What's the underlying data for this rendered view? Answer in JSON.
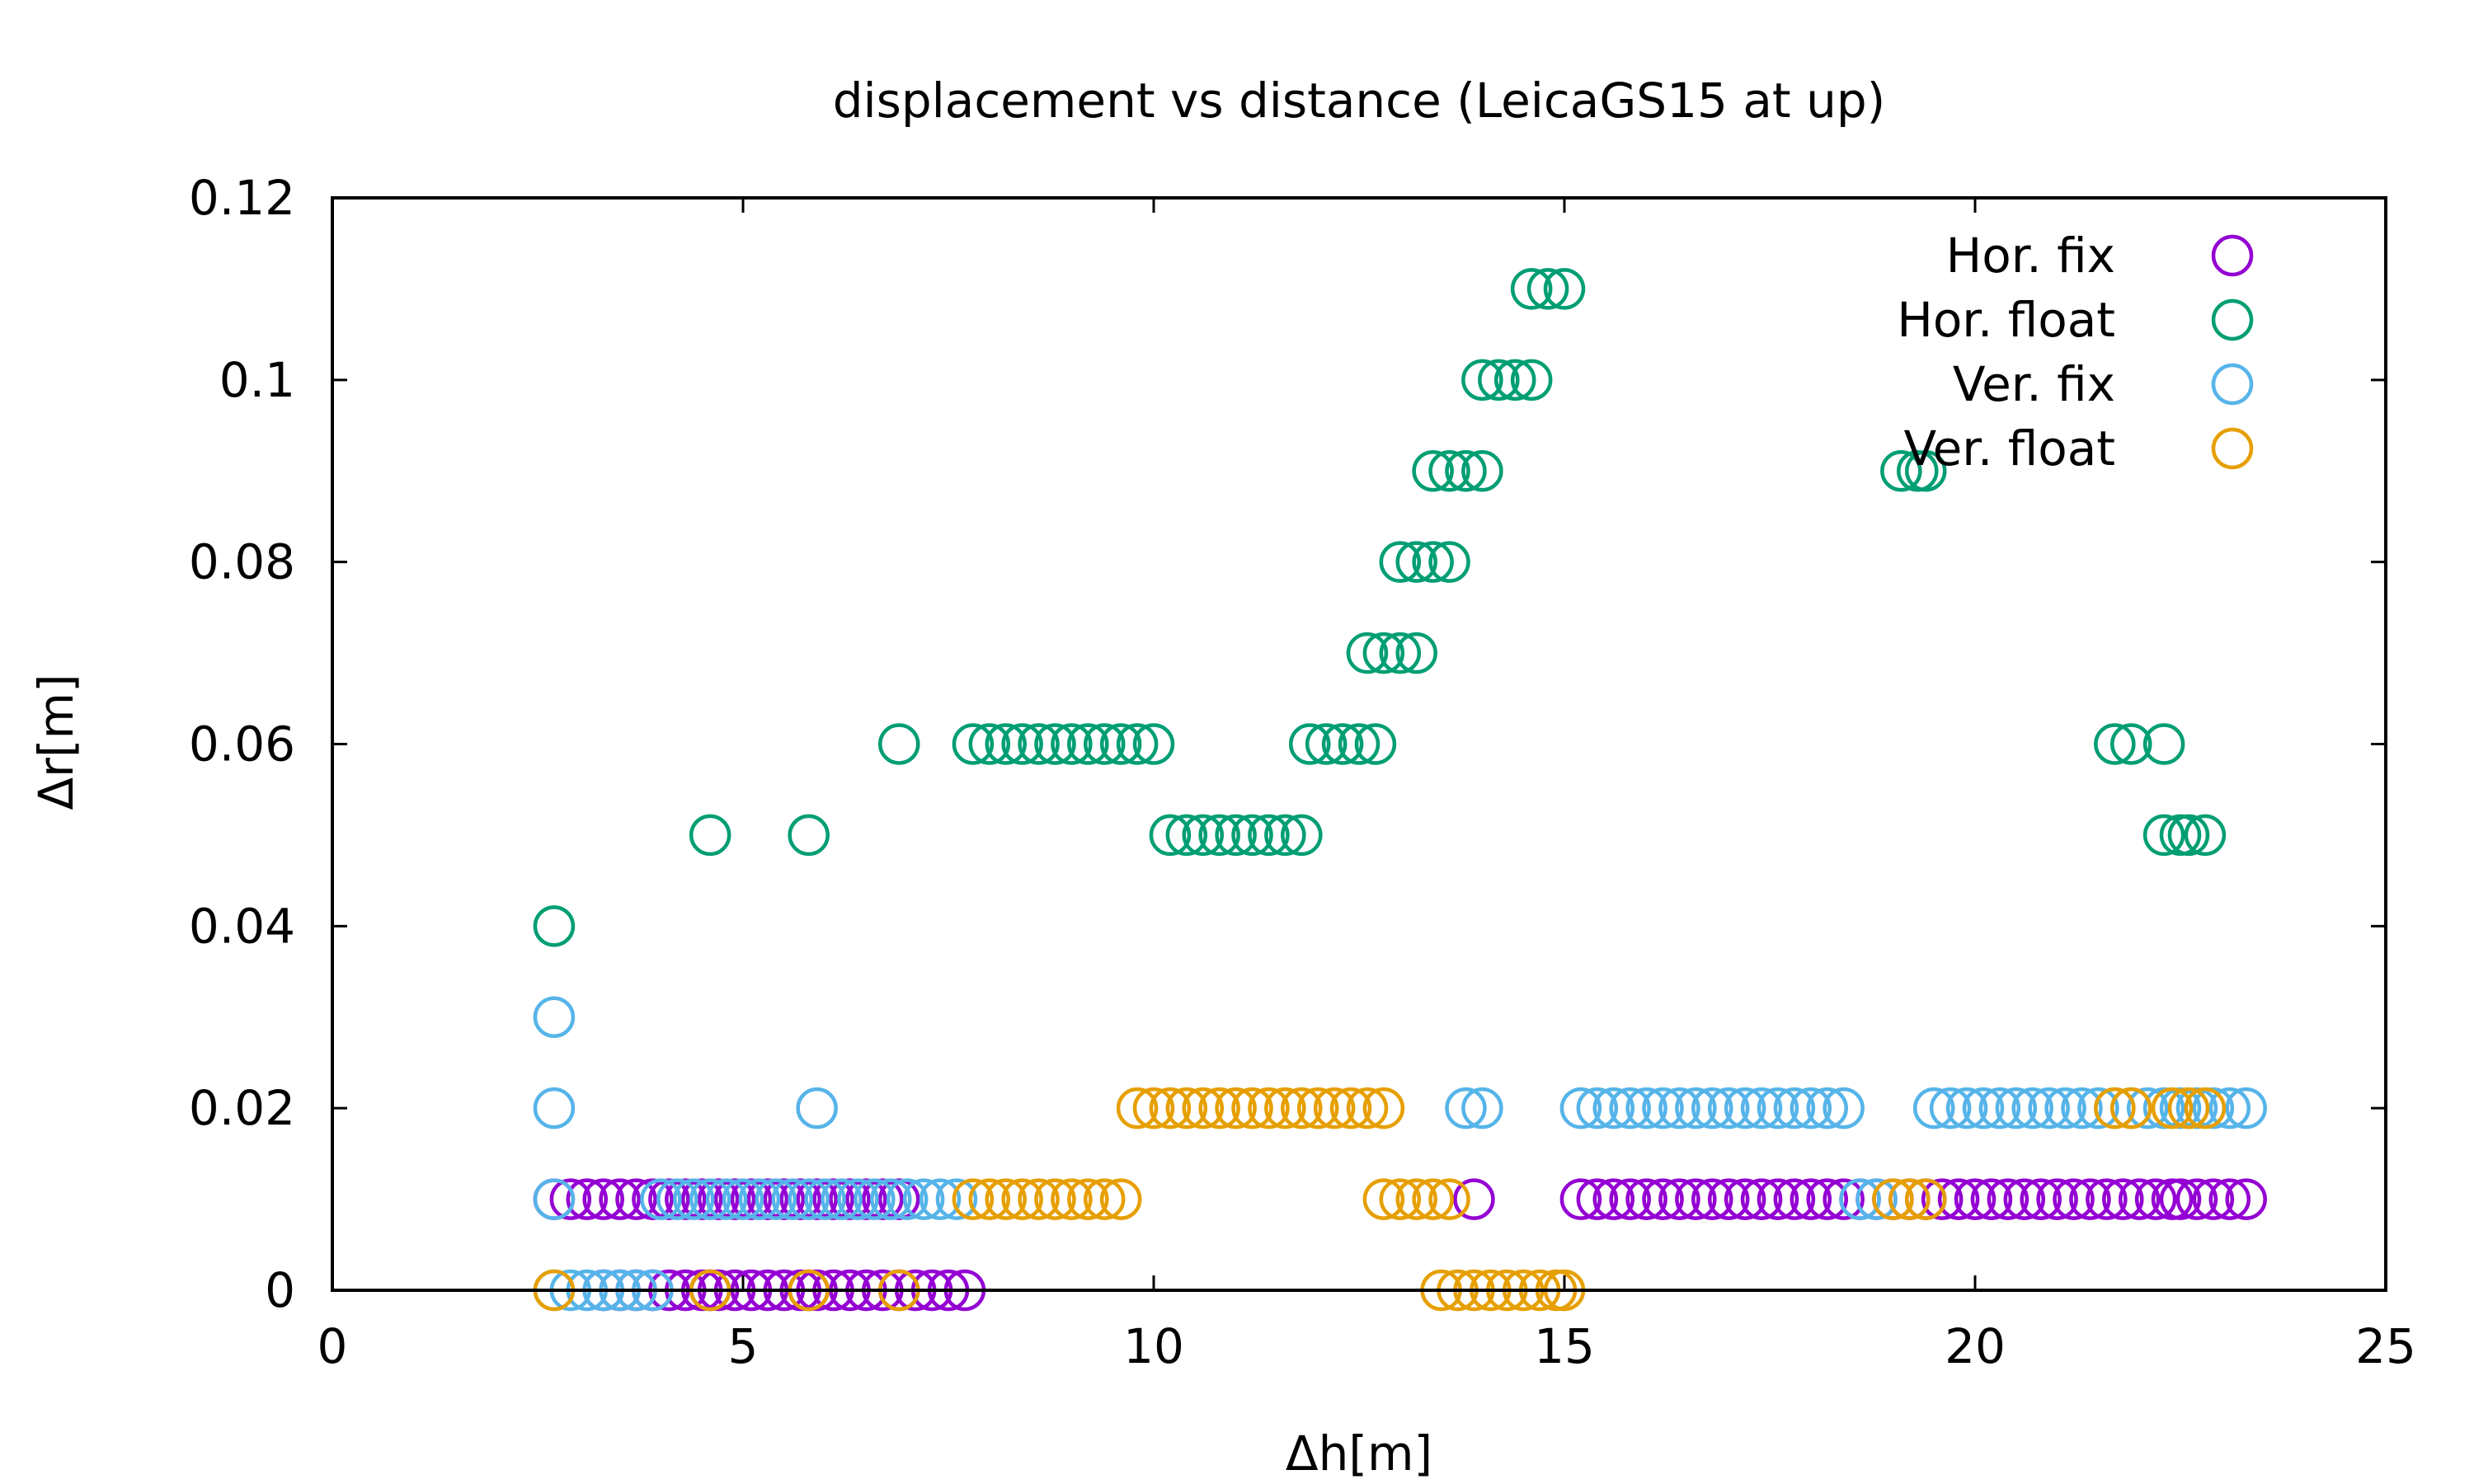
{
  "chart_data": {
    "type": "scatter",
    "title": "displacement vs distance (LeicaGS15 at up)",
    "xlabel": "Δh[m]",
    "ylabel": "Δr[m]",
    "xlim": [
      0,
      25
    ],
    "ylim": [
      0,
      0.12
    ],
    "xticks": [
      0,
      5,
      10,
      15,
      20,
      25
    ],
    "yticks": [
      0,
      0.02,
      0.04,
      0.06,
      0.08,
      0.1,
      0.12
    ],
    "ytick_labels": [
      "0",
      "0.02",
      "0.04",
      "0.06",
      "0.08",
      "0.1",
      "0.12"
    ],
    "marker": "open-circle",
    "grid": false,
    "legend_position": "top-right",
    "series": [
      {
        "name": "Hor. fix",
        "color": "#9400d3",
        "points": [
          [
            2.7,
            0.01
          ],
          [
            2.9,
            0.01
          ],
          [
            3.1,
            0.01
          ],
          [
            3.3,
            0.01
          ],
          [
            3.5,
            0.01
          ],
          [
            3.7,
            0.01
          ],
          [
            3.9,
            0.01
          ],
          [
            4.1,
            0.01
          ],
          [
            4.3,
            0.01
          ],
          [
            4.5,
            0.01
          ],
          [
            4.7,
            0.01
          ],
          [
            4.9,
            0.01
          ],
          [
            5.1,
            0.01
          ],
          [
            5.3,
            0.01
          ],
          [
            5.5,
            0.01
          ],
          [
            5.7,
            0.01
          ],
          [
            5.9,
            0.01
          ],
          [
            6.1,
            0.01
          ],
          [
            6.3,
            0.01
          ],
          [
            6.5,
            0.01
          ],
          [
            6.7,
            0.01
          ],
          [
            6.9,
            0.01
          ],
          [
            3.3,
            0
          ],
          [
            3.5,
            0
          ],
          [
            3.7,
            0
          ],
          [
            3.9,
            0
          ],
          [
            4.1,
            0
          ],
          [
            4.3,
            0
          ],
          [
            4.5,
            0
          ],
          [
            4.6,
            0
          ],
          [
            4.7,
            0
          ],
          [
            4.9,
            0
          ],
          [
            5.1,
            0
          ],
          [
            5.3,
            0
          ],
          [
            5.5,
            0
          ],
          [
            5.7,
            0
          ],
          [
            5.8,
            0
          ],
          [
            5.9,
            0
          ],
          [
            6.1,
            0
          ],
          [
            6.3,
            0
          ],
          [
            6.5,
            0
          ],
          [
            6.7,
            0
          ],
          [
            6.9,
            0
          ],
          [
            7.1,
            0
          ],
          [
            7.3,
            0
          ],
          [
            7.5,
            0
          ],
          [
            7.7,
            0
          ],
          [
            13.9,
            0.01
          ],
          [
            15.2,
            0.01
          ],
          [
            15.4,
            0.01
          ],
          [
            15.6,
            0.01
          ],
          [
            15.8,
            0.01
          ],
          [
            16.0,
            0.01
          ],
          [
            16.2,
            0.01
          ],
          [
            16.4,
            0.01
          ],
          [
            16.6,
            0.01
          ],
          [
            16.8,
            0.01
          ],
          [
            17.0,
            0.01
          ],
          [
            17.2,
            0.01
          ],
          [
            17.4,
            0.01
          ],
          [
            17.6,
            0.01
          ],
          [
            17.8,
            0.01
          ],
          [
            18.0,
            0.01
          ],
          [
            18.2,
            0.01
          ],
          [
            18.4,
            0.01
          ],
          [
            18.6,
            0.01
          ],
          [
            18.8,
            0.01
          ],
          [
            19.0,
            0.01
          ],
          [
            19.2,
            0.01
          ],
          [
            19.4,
            0.01
          ],
          [
            19.6,
            0.01
          ],
          [
            19.8,
            0.01
          ],
          [
            20.0,
            0.01
          ],
          [
            20.2,
            0.01
          ],
          [
            20.4,
            0.01
          ],
          [
            20.6,
            0.01
          ],
          [
            20.8,
            0.01
          ],
          [
            21.0,
            0.01
          ],
          [
            21.2,
            0.01
          ],
          [
            21.4,
            0.01
          ],
          [
            21.6,
            0.01
          ],
          [
            21.8,
            0.01
          ],
          [
            22.0,
            0.01
          ],
          [
            22.2,
            0.01
          ],
          [
            22.4,
            0.01
          ],
          [
            22.5,
            0.01
          ],
          [
            22.7,
            0.01
          ],
          [
            22.9,
            0.01
          ],
          [
            23.1,
            0.01
          ],
          [
            23.3,
            0.01
          ]
        ]
      },
      {
        "name": "Hor. float",
        "color": "#009e73",
        "points": [
          [
            2.7,
            0.04
          ],
          [
            4.6,
            0.05
          ],
          [
            5.8,
            0.05
          ],
          [
            6.9,
            0.06
          ],
          [
            7.8,
            0.06
          ],
          [
            8.0,
            0.06
          ],
          [
            8.2,
            0.06
          ],
          [
            8.4,
            0.06
          ],
          [
            8.6,
            0.06
          ],
          [
            8.8,
            0.06
          ],
          [
            9.0,
            0.06
          ],
          [
            9.2,
            0.06
          ],
          [
            9.4,
            0.06
          ],
          [
            9.6,
            0.06
          ],
          [
            9.8,
            0.06
          ],
          [
            10.0,
            0.06
          ],
          [
            10.2,
            0.05
          ],
          [
            10.4,
            0.05
          ],
          [
            10.6,
            0.05
          ],
          [
            10.8,
            0.05
          ],
          [
            11.0,
            0.05
          ],
          [
            11.2,
            0.05
          ],
          [
            11.4,
            0.05
          ],
          [
            11.6,
            0.05
          ],
          [
            11.8,
            0.05
          ],
          [
            11.9,
            0.06
          ],
          [
            12.1,
            0.06
          ],
          [
            12.3,
            0.06
          ],
          [
            12.5,
            0.06
          ],
          [
            12.7,
            0.06
          ],
          [
            12.6,
            0.07
          ],
          [
            12.8,
            0.07
          ],
          [
            13.0,
            0.07
          ],
          [
            13.2,
            0.07
          ],
          [
            13.0,
            0.08
          ],
          [
            13.2,
            0.08
          ],
          [
            13.4,
            0.08
          ],
          [
            13.6,
            0.08
          ],
          [
            13.4,
            0.09
          ],
          [
            13.6,
            0.09
          ],
          [
            13.8,
            0.09
          ],
          [
            14.0,
            0.09
          ],
          [
            14.0,
            0.1
          ],
          [
            14.2,
            0.1
          ],
          [
            14.4,
            0.1
          ],
          [
            14.6,
            0.1
          ],
          [
            14.6,
            0.11
          ],
          [
            14.8,
            0.11
          ],
          [
            15.0,
            0.11
          ],
          [
            19.1,
            0.09
          ],
          [
            19.3,
            0.09
          ],
          [
            19.4,
            0.09
          ],
          [
            21.7,
            0.06
          ],
          [
            21.9,
            0.06
          ],
          [
            22.3,
            0.06
          ],
          [
            22.3,
            0.05
          ],
          [
            22.5,
            0.05
          ],
          [
            22.6,
            0.05
          ],
          [
            22.8,
            0.05
          ]
        ]
      },
      {
        "name": "Ver. fix",
        "color": "#56b4e9",
        "points": [
          [
            2.7,
            0.03
          ],
          [
            2.7,
            0.02
          ],
          [
            2.7,
            0.01
          ],
          [
            2.7,
            0
          ],
          [
            2.9,
            0
          ],
          [
            3.1,
            0
          ],
          [
            3.3,
            0
          ],
          [
            3.5,
            0
          ],
          [
            3.7,
            0
          ],
          [
            3.9,
            0
          ],
          [
            4.0,
            0.01
          ],
          [
            4.2,
            0.01
          ],
          [
            4.4,
            0.01
          ],
          [
            4.6,
            0.01
          ],
          [
            4.8,
            0.01
          ],
          [
            5.0,
            0.01
          ],
          [
            5.2,
            0.01
          ],
          [
            5.4,
            0.01
          ],
          [
            5.6,
            0.01
          ],
          [
            5.8,
            0.01
          ],
          [
            6.0,
            0.01
          ],
          [
            6.2,
            0.01
          ],
          [
            6.4,
            0.01
          ],
          [
            6.6,
            0.01
          ],
          [
            6.8,
            0.01
          ],
          [
            7.0,
            0.01
          ],
          [
            7.2,
            0.01
          ],
          [
            7.4,
            0.01
          ],
          [
            7.6,
            0.01
          ],
          [
            5.9,
            0.02
          ],
          [
            13.8,
            0.02
          ],
          [
            14.0,
            0.02
          ],
          [
            15.2,
            0.02
          ],
          [
            15.4,
            0.02
          ],
          [
            15.6,
            0.02
          ],
          [
            15.8,
            0.02
          ],
          [
            16.0,
            0.02
          ],
          [
            16.2,
            0.02
          ],
          [
            16.4,
            0.02
          ],
          [
            16.6,
            0.02
          ],
          [
            16.8,
            0.02
          ],
          [
            17.0,
            0.02
          ],
          [
            17.2,
            0.02
          ],
          [
            17.4,
            0.02
          ],
          [
            17.6,
            0.02
          ],
          [
            17.8,
            0.02
          ],
          [
            18.0,
            0.02
          ],
          [
            18.2,
            0.02
          ],
          [
            18.4,
            0.02
          ],
          [
            19.5,
            0.02
          ],
          [
            19.7,
            0.02
          ],
          [
            19.9,
            0.02
          ],
          [
            20.1,
            0.02
          ],
          [
            20.3,
            0.02
          ],
          [
            20.5,
            0.02
          ],
          [
            20.7,
            0.02
          ],
          [
            20.9,
            0.02
          ],
          [
            21.1,
            0.02
          ],
          [
            21.3,
            0.02
          ],
          [
            21.5,
            0.02
          ],
          [
            21.7,
            0.02
          ],
          [
            21.9,
            0.02
          ],
          [
            22.1,
            0.02
          ],
          [
            22.3,
            0.02
          ],
          [
            22.5,
            0.02
          ],
          [
            22.7,
            0.02
          ],
          [
            22.9,
            0.02
          ],
          [
            23.1,
            0.02
          ],
          [
            23.3,
            0.02
          ],
          [
            18.6,
            0.01
          ],
          [
            18.8,
            0.01
          ]
        ]
      },
      {
        "name": "Ver. float",
        "color": "#e69f00",
        "points": [
          [
            2.7,
            0
          ],
          [
            4.6,
            0
          ],
          [
            5.8,
            0
          ],
          [
            6.9,
            0
          ],
          [
            7.8,
            0.01
          ],
          [
            8.0,
            0.01
          ],
          [
            8.2,
            0.01
          ],
          [
            8.4,
            0.01
          ],
          [
            8.6,
            0.01
          ],
          [
            8.8,
            0.01
          ],
          [
            9.0,
            0.01
          ],
          [
            9.2,
            0.01
          ],
          [
            9.4,
            0.01
          ],
          [
            9.6,
            0.01
          ],
          [
            9.8,
            0.02
          ],
          [
            10.0,
            0.02
          ],
          [
            10.2,
            0.02
          ],
          [
            10.4,
            0.02
          ],
          [
            10.6,
            0.02
          ],
          [
            10.8,
            0.02
          ],
          [
            11.0,
            0.02
          ],
          [
            11.2,
            0.02
          ],
          [
            11.4,
            0.02
          ],
          [
            11.6,
            0.02
          ],
          [
            11.8,
            0.02
          ],
          [
            12.0,
            0.02
          ],
          [
            12.2,
            0.02
          ],
          [
            12.4,
            0.02
          ],
          [
            12.6,
            0.02
          ],
          [
            12.8,
            0.02
          ],
          [
            12.8,
            0.01
          ],
          [
            13.0,
            0.01
          ],
          [
            13.2,
            0.01
          ],
          [
            13.4,
            0.01
          ],
          [
            13.6,
            0.01
          ],
          [
            13.5,
            0
          ],
          [
            13.7,
            0
          ],
          [
            13.9,
            0
          ],
          [
            14.1,
            0
          ],
          [
            14.3,
            0
          ],
          [
            14.5,
            0
          ],
          [
            14.7,
            0
          ],
          [
            14.9,
            0
          ],
          [
            15.0,
            0
          ],
          [
            19.0,
            0.01
          ],
          [
            19.2,
            0.01
          ],
          [
            19.4,
            0.01
          ],
          [
            21.7,
            0.02
          ],
          [
            21.9,
            0.02
          ],
          [
            22.4,
            0.02
          ],
          [
            22.6,
            0.02
          ],
          [
            22.8,
            0.02
          ]
        ]
      }
    ]
  }
}
